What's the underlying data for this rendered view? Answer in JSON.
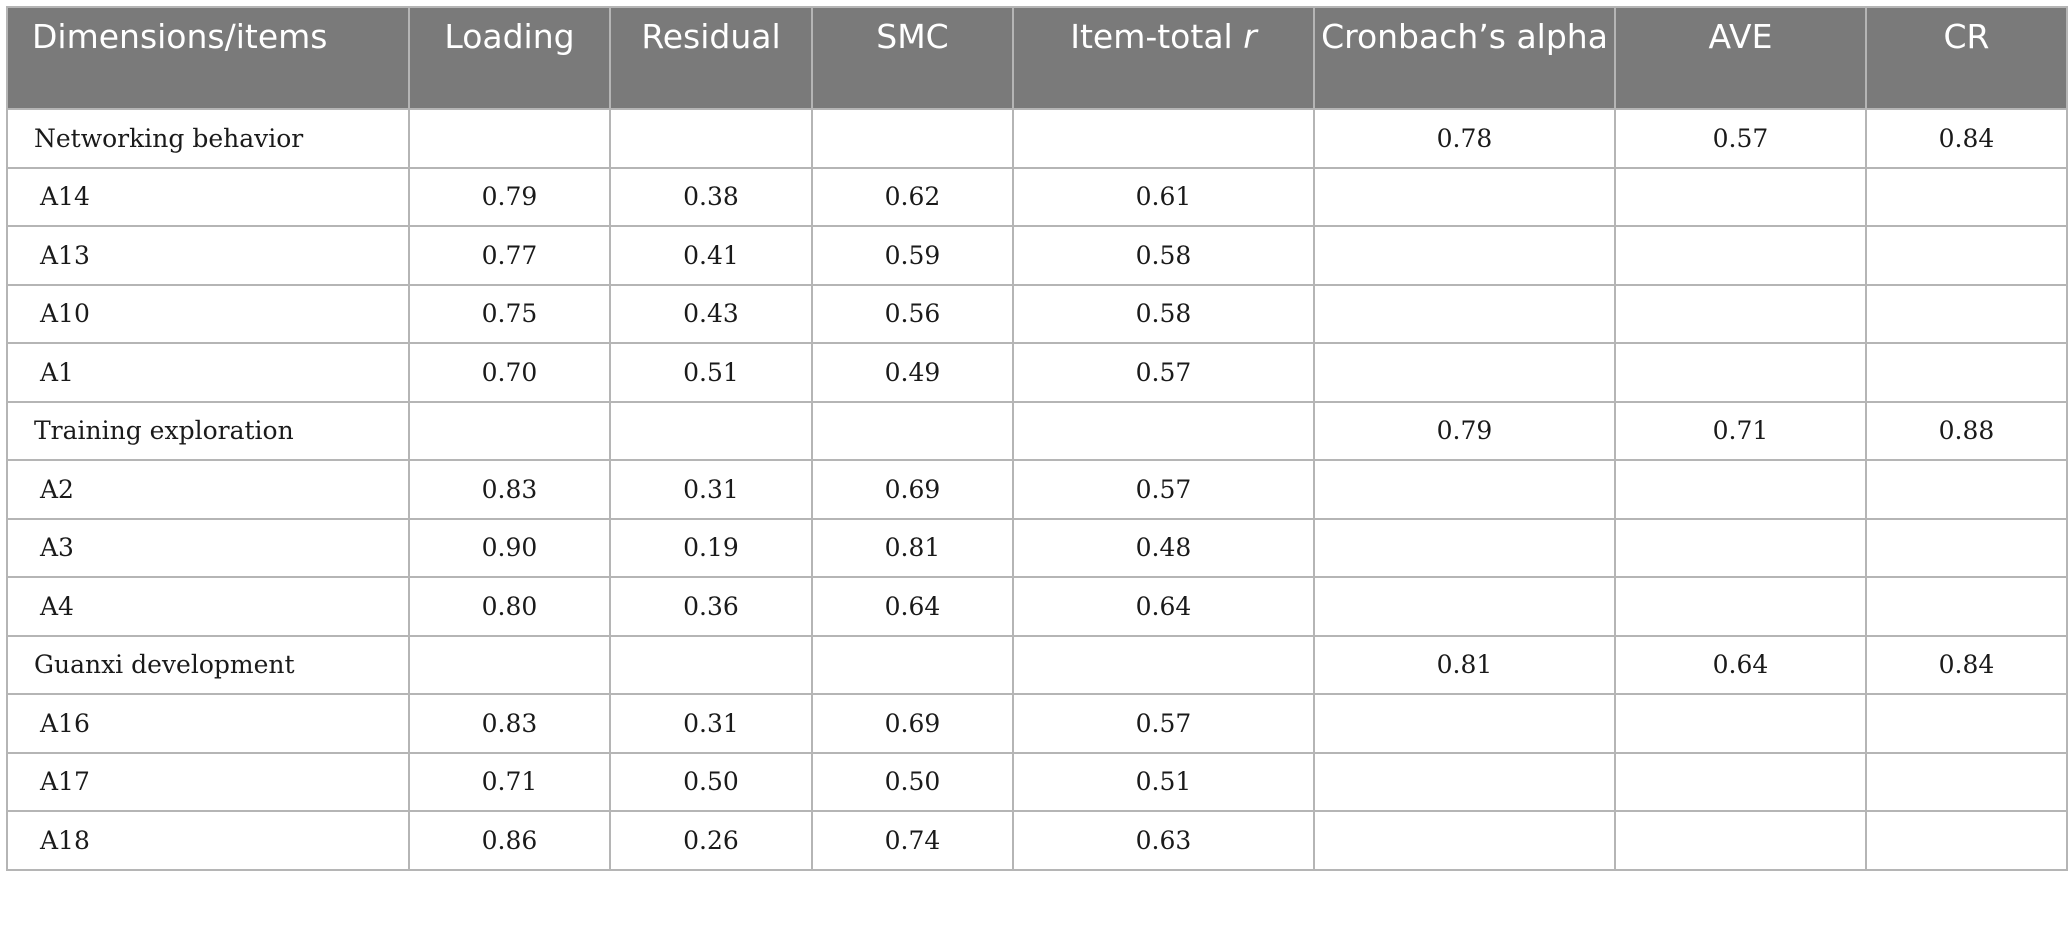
{
  "header": {
    "dimensions": "Dimensions/items",
    "loading": "Loading",
    "residual": "Residual",
    "smc": "SMC",
    "item_total_prefix": "Item-total ",
    "item_total_r": "r",
    "cronbach": "Cronbach’s alpha",
    "ave": "AVE",
    "cr": "CR"
  },
  "rows": [
    {
      "label": "Networking behavior",
      "loading": "",
      "residual": "",
      "smc": "",
      "item_total": "",
      "cronbach": "0.78",
      "ave": "0.57",
      "cr": "0.84"
    },
    {
      "label": "A14",
      "loading": "0.79",
      "residual": "0.38",
      "smc": "0.62",
      "item_total": "0.61",
      "cronbach": "",
      "ave": "",
      "cr": ""
    },
    {
      "label": "A13",
      "loading": "0.77",
      "residual": "0.41",
      "smc": "0.59",
      "item_total": "0.58",
      "cronbach": "",
      "ave": "",
      "cr": ""
    },
    {
      "label": "A10",
      "loading": "0.75",
      "residual": "0.43",
      "smc": "0.56",
      "item_total": "0.58",
      "cronbach": "",
      "ave": "",
      "cr": ""
    },
    {
      "label": "A1",
      "loading": "0.70",
      "residual": "0.51",
      "smc": "0.49",
      "item_total": "0.57",
      "cronbach": "",
      "ave": "",
      "cr": ""
    },
    {
      "label": "Training exploration",
      "loading": "",
      "residual": "",
      "smc": "",
      "item_total": "",
      "cronbach": "0.79",
      "ave": "0.71",
      "cr": "0.88"
    },
    {
      "label": "A2",
      "loading": "0.83",
      "residual": "0.31",
      "smc": "0.69",
      "item_total": "0.57",
      "cronbach": "",
      "ave": "",
      "cr": ""
    },
    {
      "label": "A3",
      "loading": "0.90",
      "residual": "0.19",
      "smc": "0.81",
      "item_total": "0.48",
      "cronbach": "",
      "ave": "",
      "cr": ""
    },
    {
      "label": "A4",
      "loading": "0.80",
      "residual": "0.36",
      "smc": "0.64",
      "item_total": "0.64",
      "cronbach": "",
      "ave": "",
      "cr": ""
    },
    {
      "label": "Guanxi development",
      "loading": "",
      "residual": "",
      "smc": "",
      "item_total": "",
      "cronbach": "0.81",
      "ave": "0.64",
      "cr": "0.84"
    },
    {
      "label": "A16",
      "loading": "0.83",
      "residual": "0.31",
      "smc": "0.69",
      "item_total": "0.57",
      "cronbach": "",
      "ave": "",
      "cr": ""
    },
    {
      "label": "A17",
      "loading": "0.71",
      "residual": "0.50",
      "smc": "0.50",
      "item_total": "0.51",
      "cronbach": "",
      "ave": "",
      "cr": ""
    },
    {
      "label": "A18",
      "loading": "0.86",
      "residual": "0.26",
      "smc": "0.74",
      "item_total": "0.63",
      "cronbach": "",
      "ave": "",
      "cr": ""
    }
  ]
}
